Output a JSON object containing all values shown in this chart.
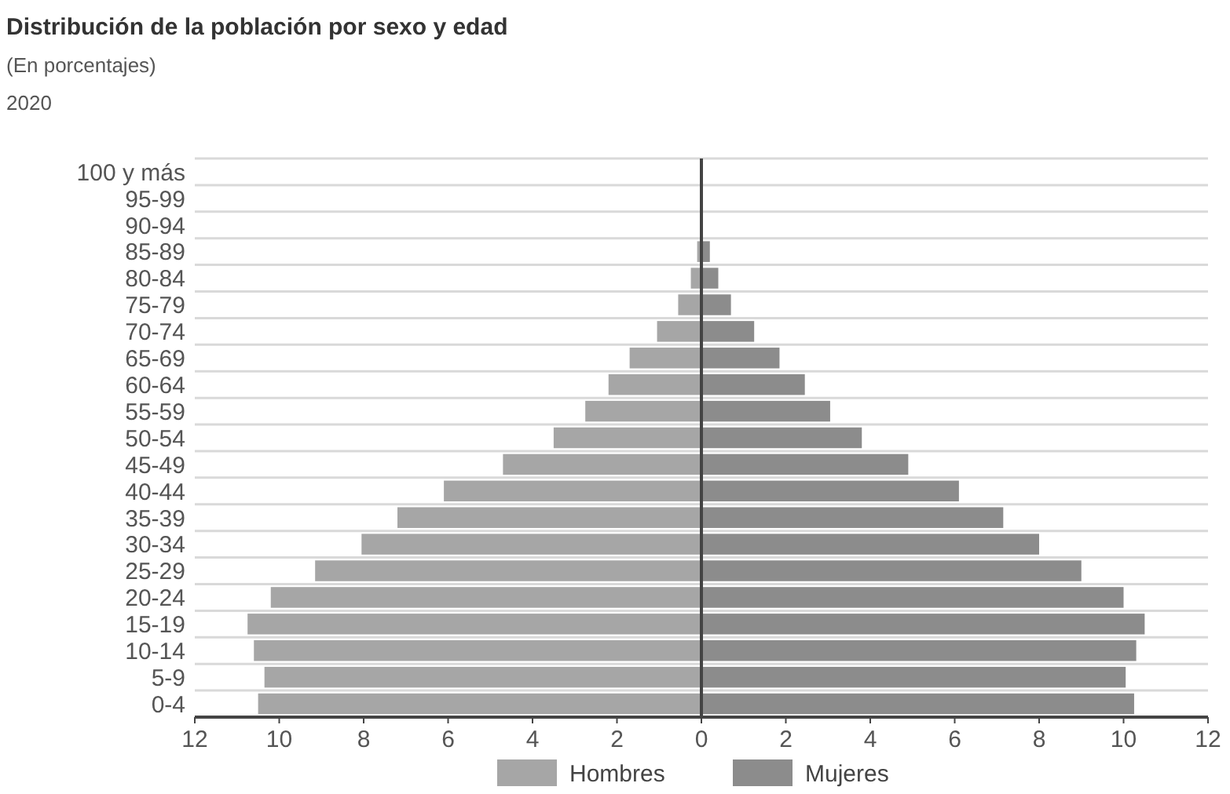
{
  "chart_data": {
    "type": "bar",
    "orientation": "horizontal",
    "stacked": true,
    "title": "Distribución de la población por sexo y edad",
    "subtitle": "(En porcentajes)",
    "annotations": [
      "2020"
    ],
    "categories": [
      "100 y más",
      "95-99",
      "90-94",
      "85-89",
      "80-84",
      "75-79",
      "70-74",
      "65-69",
      "60-64",
      "55-59",
      "50-54",
      "45-49",
      "40-44",
      "35-39",
      "30-34",
      "25-29",
      "20-24",
      "15-19",
      "10-14",
      "5-9",
      "0-4"
    ],
    "series": [
      {
        "name": "Hombres",
        "color": "#a6a6a6",
        "values": [
          0,
          0,
          0,
          -0.1,
          -0.25,
          -0.55,
          -1.05,
          -1.7,
          -2.2,
          -2.75,
          -3.5,
          -4.7,
          -6.1,
          -7.2,
          -8.05,
          -9.15,
          -10.2,
          -10.75,
          -10.6,
          -10.35,
          -10.5
        ]
      },
      {
        "name": "Mujeres",
        "color": "#8c8c8c",
        "values": [
          0,
          0,
          0,
          0.2,
          0.4,
          0.7,
          1.25,
          1.85,
          2.45,
          3.05,
          3.8,
          4.9,
          6.1,
          7.15,
          8.0,
          9.0,
          10.0,
          10.5,
          10.3,
          10.05,
          10.25
        ]
      }
    ],
    "xlim": [
      -12,
      12
    ],
    "xticks": [
      {
        "value": -12,
        "label": "12"
      },
      {
        "value": -10,
        "label": "10"
      },
      {
        "value": -8,
        "label": "8"
      },
      {
        "value": -6,
        "label": "6"
      },
      {
        "value": -4,
        "label": "4"
      },
      {
        "value": -2,
        "label": "2"
      },
      0,
      2,
      4,
      6,
      8,
      10,
      12
    ],
    "grid": "y",
    "legend": "bottom"
  }
}
